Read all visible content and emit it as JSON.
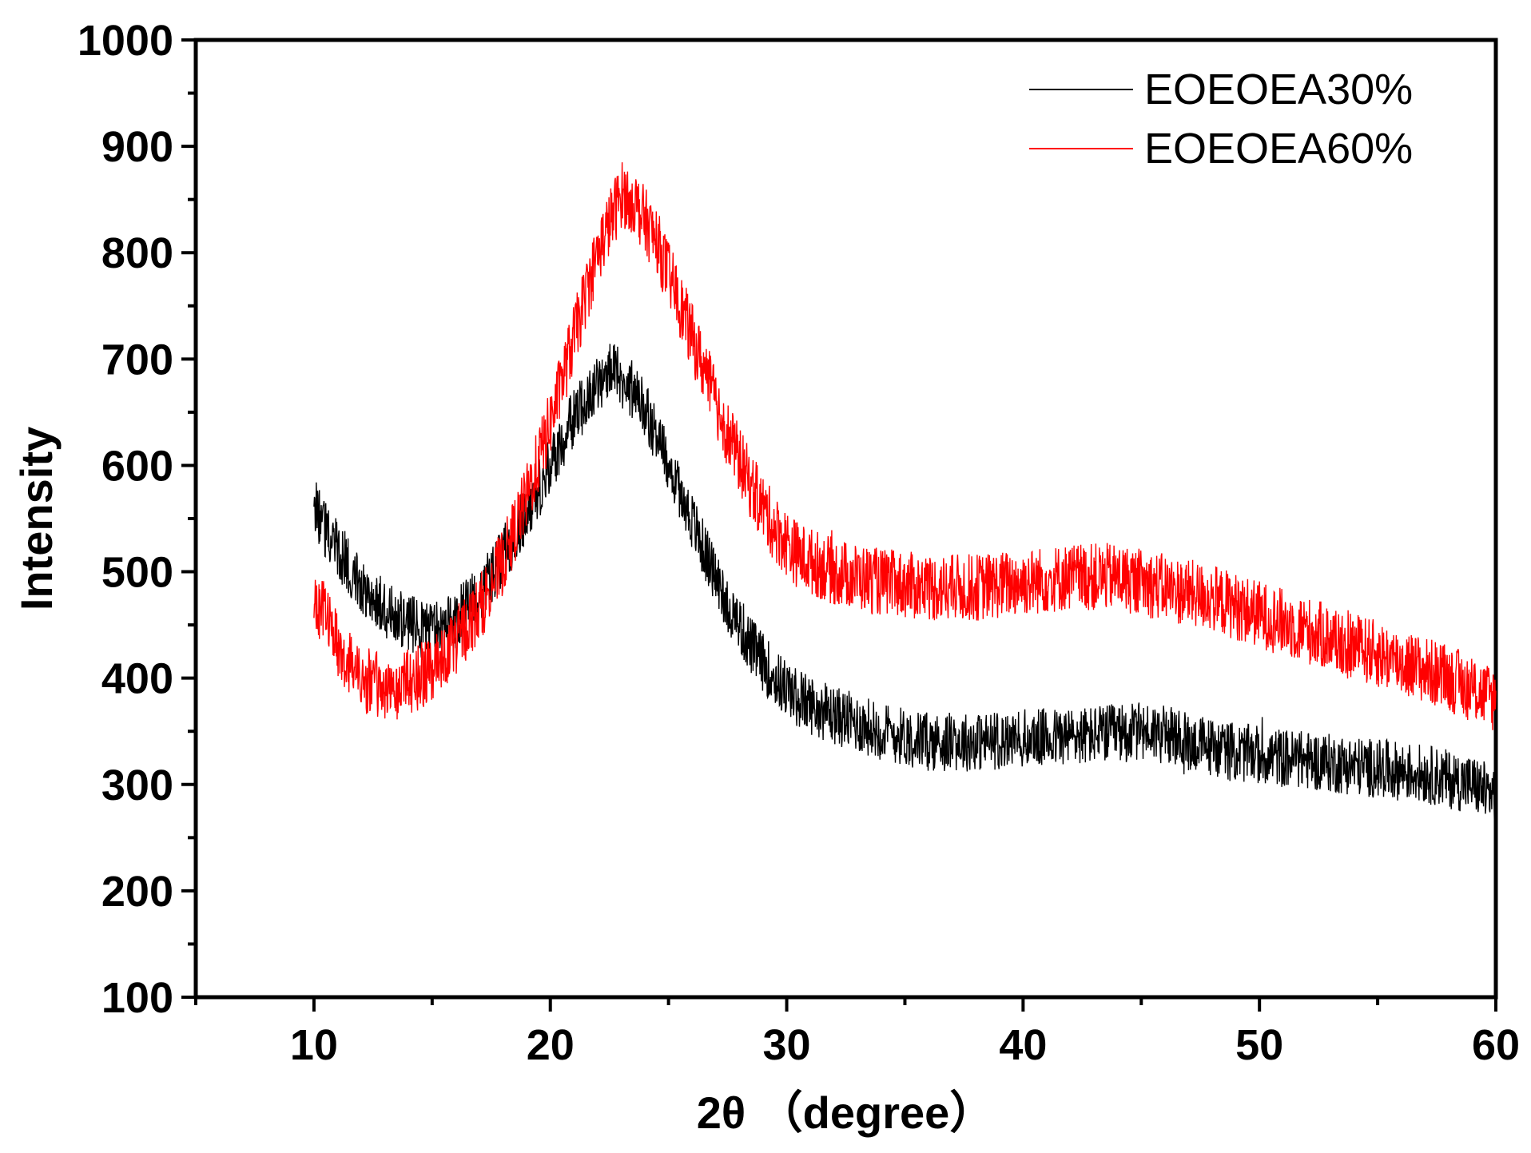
{
  "chart_data": {
    "type": "line",
    "title": "",
    "xlabel": "2θ （degree）",
    "ylabel": "Intensity",
    "xlim": [
      5,
      60
    ],
    "ylim": [
      100,
      1000
    ],
    "x_ticks": [
      10,
      20,
      30,
      40,
      50,
      60
    ],
    "y_ticks": [
      100,
      200,
      300,
      400,
      500,
      600,
      700,
      800,
      900,
      1000
    ],
    "x_tick_labels": [
      "10",
      "20",
      "30",
      "40",
      "50",
      "60"
    ],
    "y_tick_labels": [
      "100",
      "200",
      "300",
      "400",
      "500",
      "600",
      "700",
      "800",
      "900",
      "1000"
    ],
    "grid": false,
    "legend_position": "top-right",
    "series": [
      {
        "name": "EOEOEA30%",
        "color": "#000000",
        "noise_amplitude": 28,
        "points": [
          [
            10,
            560
          ],
          [
            11,
            520
          ],
          [
            12,
            490
          ],
          [
            13,
            465
          ],
          [
            14,
            450
          ],
          [
            15,
            445
          ],
          [
            16,
            455
          ],
          [
            17,
            480
          ],
          [
            18,
            515
          ],
          [
            19,
            555
          ],
          [
            20,
            600
          ],
          [
            21,
            645
          ],
          [
            22,
            675
          ],
          [
            22.6,
            690
          ],
          [
            23.5,
            670
          ],
          [
            24.5,
            630
          ],
          [
            25.5,
            575
          ],
          [
            26.5,
            520
          ],
          [
            27.5,
            470
          ],
          [
            28.5,
            430
          ],
          [
            29.5,
            400
          ],
          [
            30.5,
            380
          ],
          [
            32,
            365
          ],
          [
            34,
            350
          ],
          [
            36,
            340
          ],
          [
            38,
            340
          ],
          [
            40,
            343
          ],
          [
            42,
            345
          ],
          [
            44,
            348
          ],
          [
            45.5,
            350
          ],
          [
            47,
            340
          ],
          [
            49,
            330
          ],
          [
            51,
            325
          ],
          [
            53,
            320
          ],
          [
            55,
            315
          ],
          [
            57,
            310
          ],
          [
            59,
            300
          ],
          [
            60,
            290
          ]
        ]
      },
      {
        "name": "EOEOEA60%",
        "color": "#ff0000",
        "noise_amplitude": 32,
        "points": [
          [
            10,
            480
          ],
          [
            11,
            430
          ],
          [
            12,
            400
          ],
          [
            13,
            390
          ],
          [
            14,
            395
          ],
          [
            15,
            410
          ],
          [
            16,
            435
          ],
          [
            17,
            465
          ],
          [
            18,
            510
          ],
          [
            19,
            570
          ],
          [
            20,
            640
          ],
          [
            21,
            720
          ],
          [
            22,
            800
          ],
          [
            23,
            855
          ],
          [
            23.5,
            850
          ],
          [
            24.5,
            810
          ],
          [
            25.5,
            750
          ],
          [
            26.5,
            690
          ],
          [
            27.5,
            630
          ],
          [
            28.5,
            580
          ],
          [
            29.5,
            540
          ],
          [
            30.5,
            515
          ],
          [
            32,
            500
          ],
          [
            34,
            490
          ],
          [
            36,
            485
          ],
          [
            38,
            485
          ],
          [
            40,
            490
          ],
          [
            42,
            495
          ],
          [
            44,
            495
          ],
          [
            46,
            485
          ],
          [
            48,
            475
          ],
          [
            50,
            460
          ],
          [
            52,
            445
          ],
          [
            54,
            430
          ],
          [
            56,
            415
          ],
          [
            58,
            400
          ],
          [
            60,
            380
          ]
        ]
      }
    ]
  }
}
